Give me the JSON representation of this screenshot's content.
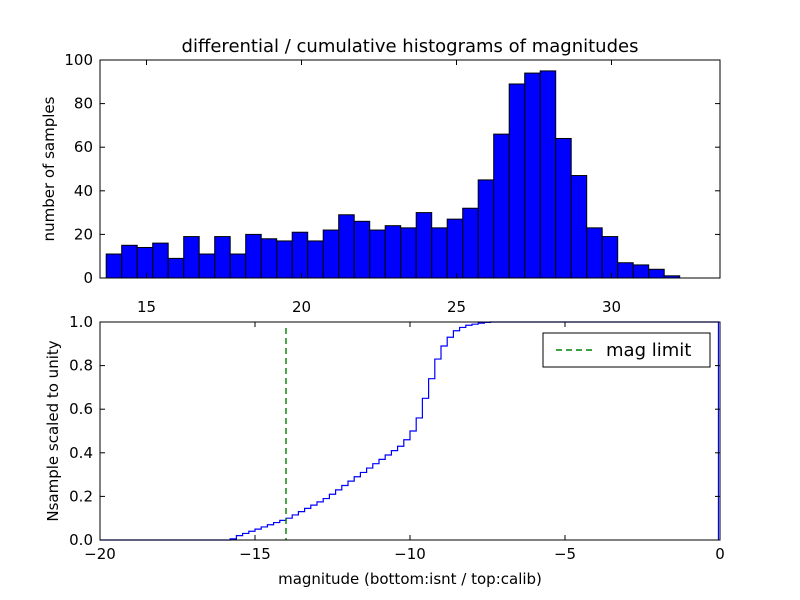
{
  "colors": {
    "bar_fill": "#0000ff",
    "bar_edge": "#000000",
    "cdf_line": "#0000ff",
    "limit_line": "#008000",
    "axes": "#000000"
  },
  "chart_data": [
    {
      "type": "bar",
      "title": "differential / cumulative histograms of magnitudes",
      "xlabel": "",
      "ylabel": "number of samples",
      "xlim": [
        13.5,
        33.5
      ],
      "ylim": [
        0,
        100
      ],
      "bin_width": 0.5,
      "xticks": [
        15,
        20,
        25,
        30
      ],
      "yticks": [
        0,
        20,
        40,
        60,
        80,
        100
      ],
      "bins_left": [
        13.7,
        14.2,
        14.7,
        15.2,
        15.7,
        16.2,
        16.7,
        17.2,
        17.7,
        18.2,
        18.7,
        19.2,
        19.7,
        20.2,
        20.7,
        21.2,
        21.7,
        22.2,
        22.7,
        23.2,
        23.7,
        24.2,
        24.7,
        25.2,
        25.7,
        26.2,
        26.7,
        27.2,
        27.7,
        28.2,
        28.7,
        29.2,
        29.7,
        30.2,
        30.7,
        31.2,
        31.7
      ],
      "values": [
        11,
        15,
        14,
        16,
        9,
        19,
        11,
        19,
        11,
        20,
        18,
        17,
        21,
        17,
        22,
        29,
        26,
        22,
        24,
        23,
        30,
        23,
        27,
        32,
        45,
        66,
        89,
        94,
        95,
        64,
        47,
        23,
        19,
        7,
        6,
        4,
        1
      ]
    },
    {
      "type": "line",
      "style": "step",
      "xlabel": "magnitude (bottom:isnt / top:calib)",
      "ylabel": "Nsample scaled to unity",
      "xlim": [
        -20,
        0
      ],
      "ylim": [
        0,
        1.0
      ],
      "xticks": [
        -20,
        -15,
        -10,
        -5,
        0
      ],
      "xtick_labels": [
        "−20",
        "−15",
        "−10",
        "−5",
        "0"
      ],
      "yticks": [
        0.0,
        0.2,
        0.4,
        0.6,
        0.8,
        1.0
      ],
      "ytick_labels": [
        "0.0",
        "0.2",
        "0.4",
        "0.6",
        "0.8",
        "1.0"
      ],
      "cdf": {
        "x": [
          -20,
          -15.8,
          -15.6,
          -15.4,
          -15.2,
          -15.0,
          -14.8,
          -14.6,
          -14.4,
          -14.2,
          -14.0,
          -13.8,
          -13.6,
          -13.4,
          -13.2,
          -13.0,
          -12.8,
          -12.6,
          -12.4,
          -12.2,
          -12.0,
          -11.8,
          -11.6,
          -11.4,
          -11.2,
          -11.0,
          -10.8,
          -10.6,
          -10.4,
          -10.2,
          -10.0,
          -9.8,
          -9.6,
          -9.4,
          -9.2,
          -9.0,
          -8.8,
          -8.6,
          -8.4,
          -8.2,
          -8.0,
          -7.8,
          -7.6,
          -7.4,
          -7.2,
          -7.0,
          -6.8,
          -0.05
        ],
        "y": [
          0.0,
          0.005,
          0.02,
          0.03,
          0.04,
          0.05,
          0.06,
          0.07,
          0.08,
          0.09,
          0.1,
          0.115,
          0.13,
          0.145,
          0.16,
          0.175,
          0.19,
          0.21,
          0.23,
          0.25,
          0.27,
          0.29,
          0.31,
          0.33,
          0.35,
          0.37,
          0.39,
          0.41,
          0.43,
          0.46,
          0.5,
          0.56,
          0.65,
          0.74,
          0.83,
          0.89,
          0.93,
          0.96,
          0.975,
          0.985,
          0.99,
          0.995,
          0.998,
          1.0,
          1.0,
          1.0,
          1.0,
          1.0
        ]
      },
      "limit": {
        "x": -14.0,
        "label": "mag limit"
      },
      "legend_position": "top-right"
    }
  ]
}
